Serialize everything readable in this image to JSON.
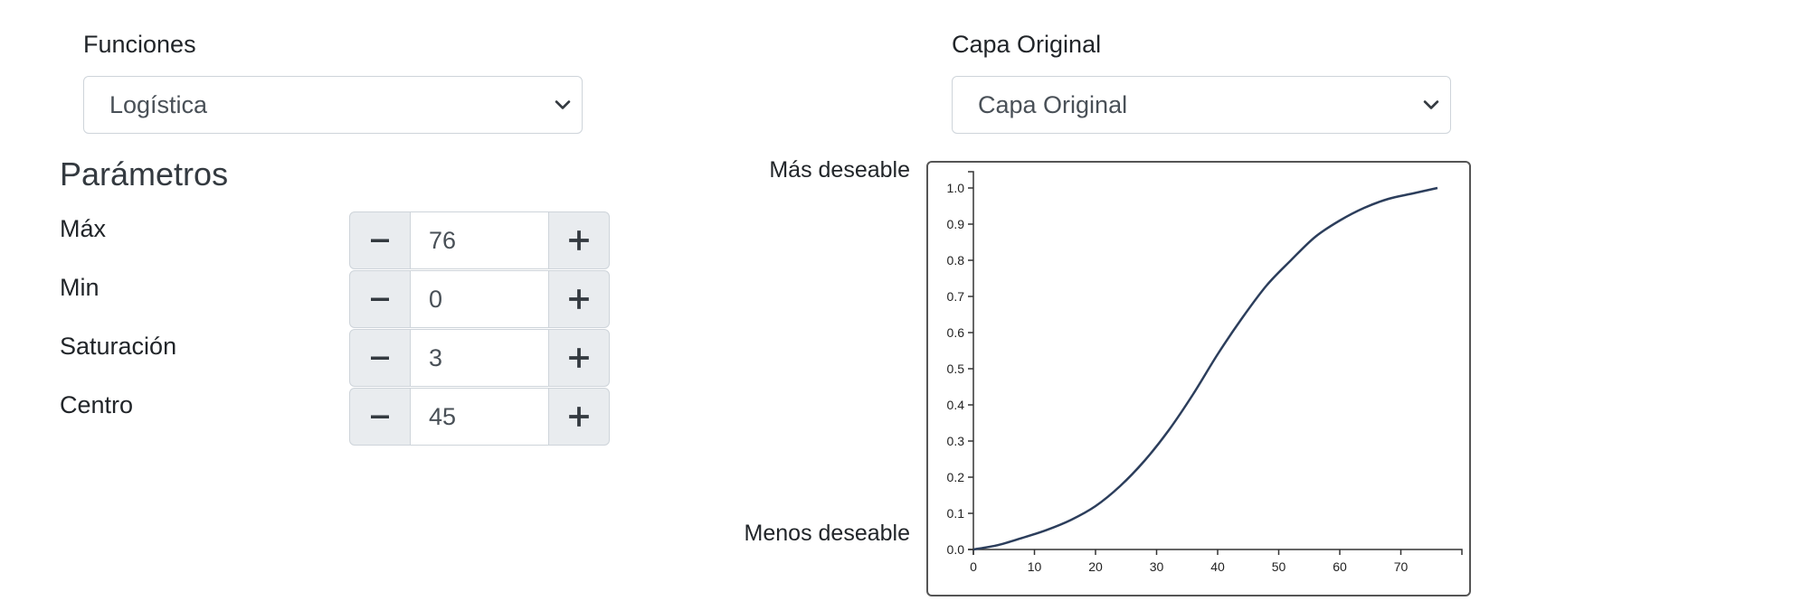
{
  "functions": {
    "label": "Funciones",
    "selected": "Logística"
  },
  "layer": {
    "label": "Capa Original",
    "selected": "Capa Original"
  },
  "parameters": {
    "title": "Parámetros",
    "items": [
      {
        "label": "Máx",
        "value": "76"
      },
      {
        "label": "Min",
        "value": "0"
      },
      {
        "label": "Saturación",
        "value": "3"
      },
      {
        "label": "Centro",
        "value": "45"
      }
    ]
  },
  "chart_labels": {
    "top": "Más deseable",
    "bottom": "Menos deseable"
  },
  "colors": {
    "curve": "#2c3e5c",
    "axis": "#333333"
  },
  "chart_data": {
    "type": "line",
    "title": "",
    "xlabel": "",
    "ylabel": "",
    "xlim": [
      0,
      80
    ],
    "ylim": [
      0,
      1.0
    ],
    "x_ticks": [
      0,
      10,
      20,
      30,
      40,
      50,
      60,
      70
    ],
    "y_ticks": [
      0.0,
      0.1,
      0.2,
      0.3,
      0.4,
      0.5,
      0.6,
      0.7,
      0.8,
      0.9,
      1.0
    ],
    "grid": false,
    "series": [
      {
        "x": [
          0,
          4,
          8,
          12,
          16,
          20,
          24,
          28,
          32,
          36,
          40,
          44,
          48,
          52,
          56,
          60,
          64,
          68,
          72,
          76
        ],
        "y": [
          0.0,
          0.012,
          0.032,
          0.054,
          0.082,
          0.12,
          0.175,
          0.245,
          0.33,
          0.43,
          0.54,
          0.64,
          0.73,
          0.8,
          0.865,
          0.91,
          0.945,
          0.97,
          0.985,
          1.0
        ]
      }
    ]
  }
}
